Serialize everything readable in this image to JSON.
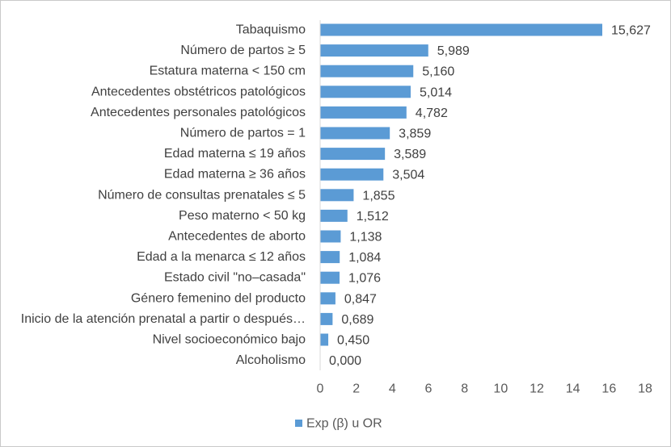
{
  "chart_data": {
    "type": "bar",
    "orientation": "horizontal",
    "categories": [
      "Tabaquismo",
      "Número de partos ≥ 5",
      "Estatura materna < 150 cm",
      "Antecedentes obstétricos patológicos",
      "Antecedentes personales patológicos",
      "Número de partos = 1",
      "Edad materna ≤ 19 años",
      "Edad materna ≥ 36 años",
      "Número de consultas prenatales ≤ 5",
      "Peso materno < 50 kg",
      "Antecedentes de aborto",
      "Edad a la menarca ≤ 12 años",
      "Estado civil \"no–casada\"",
      "Género femenino del producto",
      "Inicio de la atención prenatal a partir o después…",
      "Nivel socioeconómico bajo",
      "Alcoholismo"
    ],
    "values": [
      15.627,
      5.989,
      5.16,
      5.014,
      4.782,
      3.859,
      3.589,
      3.504,
      1.855,
      1.512,
      1.138,
      1.084,
      1.076,
      0.847,
      0.689,
      0.45,
      0.0
    ],
    "value_labels": [
      "15,627",
      "5,989",
      "5,160",
      "5,014",
      "4,782",
      "3,859",
      "3,589",
      "3,504",
      "1,855",
      "1,512",
      "1,138",
      "1,084",
      "1,076",
      "0,847",
      "0,689",
      "0,450",
      "0,000"
    ],
    "xlim": [
      0,
      18
    ],
    "xticks": [
      "0",
      "2",
      "4",
      "6",
      "8",
      "10",
      "12",
      "14",
      "16",
      "18"
    ],
    "series": [
      {
        "name": "Exp (β) u OR",
        "color": "#5b9bd5"
      }
    ],
    "legend": "bottom",
    "grid": false
  }
}
